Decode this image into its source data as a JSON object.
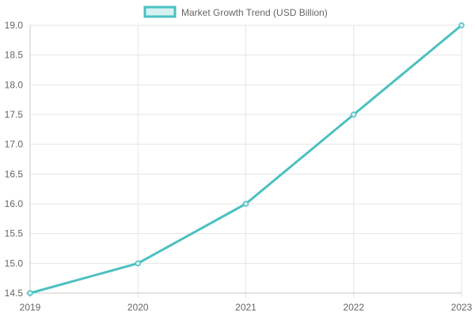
{
  "chart_data": {
    "type": "line",
    "title": "",
    "xlabel": "",
    "ylabel": "",
    "categories": [
      "2019",
      "2020",
      "2021",
      "2022",
      "2023"
    ],
    "series": [
      {
        "name": "Market Growth Trend (USD Billion)",
        "values": [
          14.5,
          15.0,
          16.0,
          17.5,
          19.0
        ],
        "color": "#4bc0c0",
        "fill_color": "#d5f2f2"
      }
    ],
    "ylim": [
      14.5,
      19.0
    ],
    "yticks": [
      "14.5",
      "15.0",
      "15.5",
      "16.0",
      "16.5",
      "17.0",
      "17.5",
      "18.0",
      "18.5",
      "19.0"
    ],
    "grid": true,
    "legend_position": "top-center"
  }
}
